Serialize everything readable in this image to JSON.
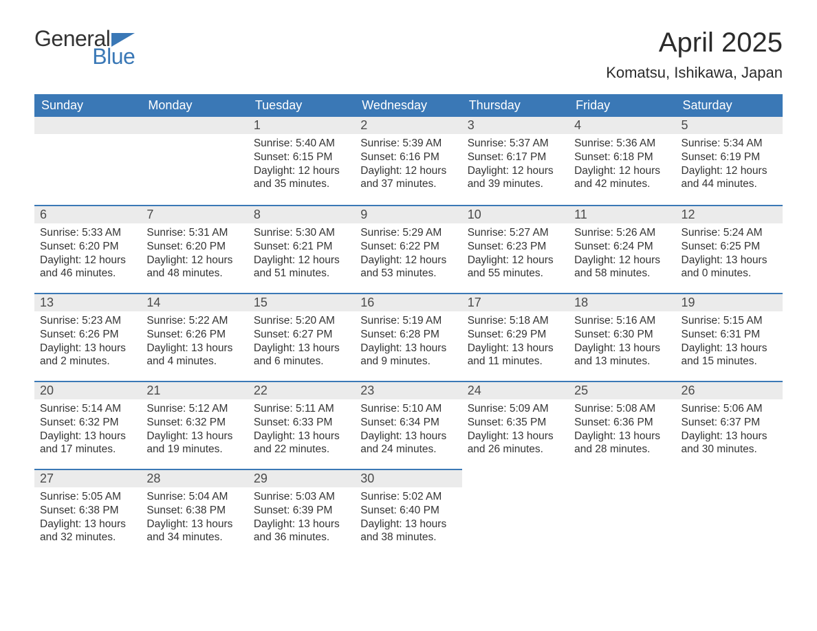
{
  "brand": {
    "part1": "General",
    "part2": "Blue",
    "text_color": "#333333",
    "accent_color": "#3a78b6"
  },
  "title": "April 2025",
  "location": "Komatsu, Ishikawa, Japan",
  "colors": {
    "header_bg": "#3a78b6",
    "header_text": "#ffffff",
    "daynum_bg": "#ebebeb",
    "row_divider": "#3a78b6",
    "body_text": "#333333",
    "page_bg": "#ffffff"
  },
  "weekdays": [
    "Sunday",
    "Monday",
    "Tuesday",
    "Wednesday",
    "Thursday",
    "Friday",
    "Saturday"
  ],
  "weeks": [
    [
      null,
      null,
      {
        "n": "1",
        "sr": "Sunrise: 5:40 AM",
        "ss": "Sunset: 6:15 PM",
        "d1": "Daylight: 12 hours",
        "d2": "and 35 minutes."
      },
      {
        "n": "2",
        "sr": "Sunrise: 5:39 AM",
        "ss": "Sunset: 6:16 PM",
        "d1": "Daylight: 12 hours",
        "d2": "and 37 minutes."
      },
      {
        "n": "3",
        "sr": "Sunrise: 5:37 AM",
        "ss": "Sunset: 6:17 PM",
        "d1": "Daylight: 12 hours",
        "d2": "and 39 minutes."
      },
      {
        "n": "4",
        "sr": "Sunrise: 5:36 AM",
        "ss": "Sunset: 6:18 PM",
        "d1": "Daylight: 12 hours",
        "d2": "and 42 minutes."
      },
      {
        "n": "5",
        "sr": "Sunrise: 5:34 AM",
        "ss": "Sunset: 6:19 PM",
        "d1": "Daylight: 12 hours",
        "d2": "and 44 minutes."
      }
    ],
    [
      {
        "n": "6",
        "sr": "Sunrise: 5:33 AM",
        "ss": "Sunset: 6:20 PM",
        "d1": "Daylight: 12 hours",
        "d2": "and 46 minutes."
      },
      {
        "n": "7",
        "sr": "Sunrise: 5:31 AM",
        "ss": "Sunset: 6:20 PM",
        "d1": "Daylight: 12 hours",
        "d2": "and 48 minutes."
      },
      {
        "n": "8",
        "sr": "Sunrise: 5:30 AM",
        "ss": "Sunset: 6:21 PM",
        "d1": "Daylight: 12 hours",
        "d2": "and 51 minutes."
      },
      {
        "n": "9",
        "sr": "Sunrise: 5:29 AM",
        "ss": "Sunset: 6:22 PM",
        "d1": "Daylight: 12 hours",
        "d2": "and 53 minutes."
      },
      {
        "n": "10",
        "sr": "Sunrise: 5:27 AM",
        "ss": "Sunset: 6:23 PM",
        "d1": "Daylight: 12 hours",
        "d2": "and 55 minutes."
      },
      {
        "n": "11",
        "sr": "Sunrise: 5:26 AM",
        "ss": "Sunset: 6:24 PM",
        "d1": "Daylight: 12 hours",
        "d2": "and 58 minutes."
      },
      {
        "n": "12",
        "sr": "Sunrise: 5:24 AM",
        "ss": "Sunset: 6:25 PM",
        "d1": "Daylight: 13 hours",
        "d2": "and 0 minutes."
      }
    ],
    [
      {
        "n": "13",
        "sr": "Sunrise: 5:23 AM",
        "ss": "Sunset: 6:26 PM",
        "d1": "Daylight: 13 hours",
        "d2": "and 2 minutes."
      },
      {
        "n": "14",
        "sr": "Sunrise: 5:22 AM",
        "ss": "Sunset: 6:26 PM",
        "d1": "Daylight: 13 hours",
        "d2": "and 4 minutes."
      },
      {
        "n": "15",
        "sr": "Sunrise: 5:20 AM",
        "ss": "Sunset: 6:27 PM",
        "d1": "Daylight: 13 hours",
        "d2": "and 6 minutes."
      },
      {
        "n": "16",
        "sr": "Sunrise: 5:19 AM",
        "ss": "Sunset: 6:28 PM",
        "d1": "Daylight: 13 hours",
        "d2": "and 9 minutes."
      },
      {
        "n": "17",
        "sr": "Sunrise: 5:18 AM",
        "ss": "Sunset: 6:29 PM",
        "d1": "Daylight: 13 hours",
        "d2": "and 11 minutes."
      },
      {
        "n": "18",
        "sr": "Sunrise: 5:16 AM",
        "ss": "Sunset: 6:30 PM",
        "d1": "Daylight: 13 hours",
        "d2": "and 13 minutes."
      },
      {
        "n": "19",
        "sr": "Sunrise: 5:15 AM",
        "ss": "Sunset: 6:31 PM",
        "d1": "Daylight: 13 hours",
        "d2": "and 15 minutes."
      }
    ],
    [
      {
        "n": "20",
        "sr": "Sunrise: 5:14 AM",
        "ss": "Sunset: 6:32 PM",
        "d1": "Daylight: 13 hours",
        "d2": "and 17 minutes."
      },
      {
        "n": "21",
        "sr": "Sunrise: 5:12 AM",
        "ss": "Sunset: 6:32 PM",
        "d1": "Daylight: 13 hours",
        "d2": "and 19 minutes."
      },
      {
        "n": "22",
        "sr": "Sunrise: 5:11 AM",
        "ss": "Sunset: 6:33 PM",
        "d1": "Daylight: 13 hours",
        "d2": "and 22 minutes."
      },
      {
        "n": "23",
        "sr": "Sunrise: 5:10 AM",
        "ss": "Sunset: 6:34 PM",
        "d1": "Daylight: 13 hours",
        "d2": "and 24 minutes."
      },
      {
        "n": "24",
        "sr": "Sunrise: 5:09 AM",
        "ss": "Sunset: 6:35 PM",
        "d1": "Daylight: 13 hours",
        "d2": "and 26 minutes."
      },
      {
        "n": "25",
        "sr": "Sunrise: 5:08 AM",
        "ss": "Sunset: 6:36 PM",
        "d1": "Daylight: 13 hours",
        "d2": "and 28 minutes."
      },
      {
        "n": "26",
        "sr": "Sunrise: 5:06 AM",
        "ss": "Sunset: 6:37 PM",
        "d1": "Daylight: 13 hours",
        "d2": "and 30 minutes."
      }
    ],
    [
      {
        "n": "27",
        "sr": "Sunrise: 5:05 AM",
        "ss": "Sunset: 6:38 PM",
        "d1": "Daylight: 13 hours",
        "d2": "and 32 minutes."
      },
      {
        "n": "28",
        "sr": "Sunrise: 5:04 AM",
        "ss": "Sunset: 6:38 PM",
        "d1": "Daylight: 13 hours",
        "d2": "and 34 minutes."
      },
      {
        "n": "29",
        "sr": "Sunrise: 5:03 AM",
        "ss": "Sunset: 6:39 PM",
        "d1": "Daylight: 13 hours",
        "d2": "and 36 minutes."
      },
      {
        "n": "30",
        "sr": "Sunrise: 5:02 AM",
        "ss": "Sunset: 6:40 PM",
        "d1": "Daylight: 13 hours",
        "d2": "and 38 minutes."
      },
      null,
      null,
      null
    ]
  ]
}
